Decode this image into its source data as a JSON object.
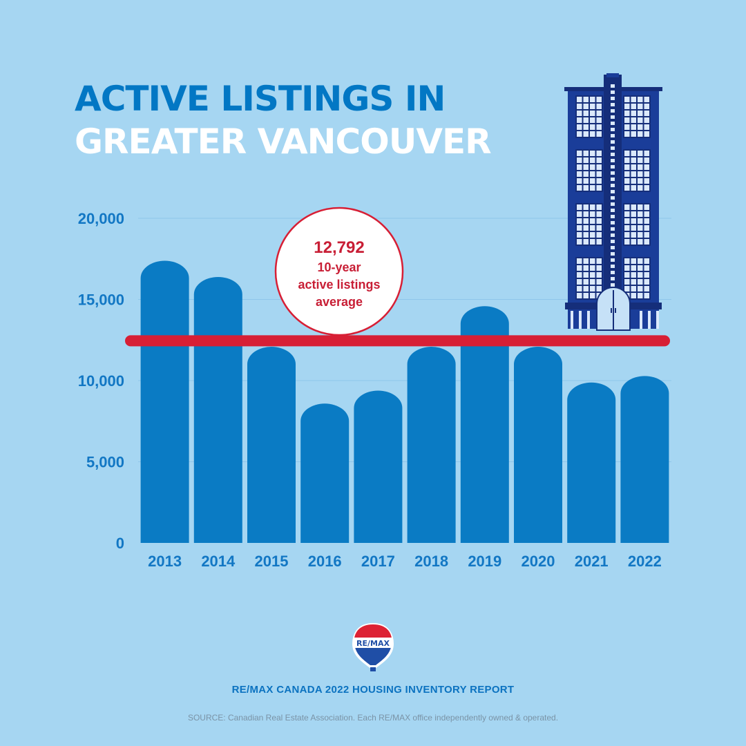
{
  "title": {
    "line1": "ACTIVE LISTINGS IN",
    "line2": "GREATER VANCOUVER"
  },
  "average_callout": {
    "value": "12,792",
    "line1": "10-year",
    "line2": "active listings",
    "line3": "average"
  },
  "logo": {
    "text": "RE/MAX"
  },
  "footer": {
    "report": "RE/MAX CANADA 2022 HOUSING INVENTORY REPORT",
    "source": "SOURCE: Canadian Real Estate Association. Each RE/MAX office independently owned & operated."
  },
  "colors": {
    "background": "#a6d6f2",
    "bar": "#0a7bc4",
    "average_line": "#d71f35",
    "axis_text": "#1277c4",
    "building": "#1a3d99",
    "building_dark": "#152e7a"
  },
  "chart_data": {
    "type": "bar",
    "title": "ACTIVE LISTINGS IN GREATER VANCOUVER",
    "xlabel": "",
    "ylabel": "",
    "categories": [
      "2013",
      "2014",
      "2015",
      "2016",
      "2017",
      "2018",
      "2019",
      "2020",
      "2021",
      "2022"
    ],
    "values": [
      17800,
      16800,
      12500,
      9000,
      9800,
      12500,
      15000,
      12500,
      10300,
      10700
    ],
    "ylim": [
      0,
      20000
    ],
    "yticks": [
      0,
      5000,
      10000,
      15000,
      20000
    ],
    "ytick_labels": [
      "0",
      "5,000",
      "10,000",
      "15,000",
      "20,000"
    ],
    "average": 12792,
    "grid": true
  }
}
